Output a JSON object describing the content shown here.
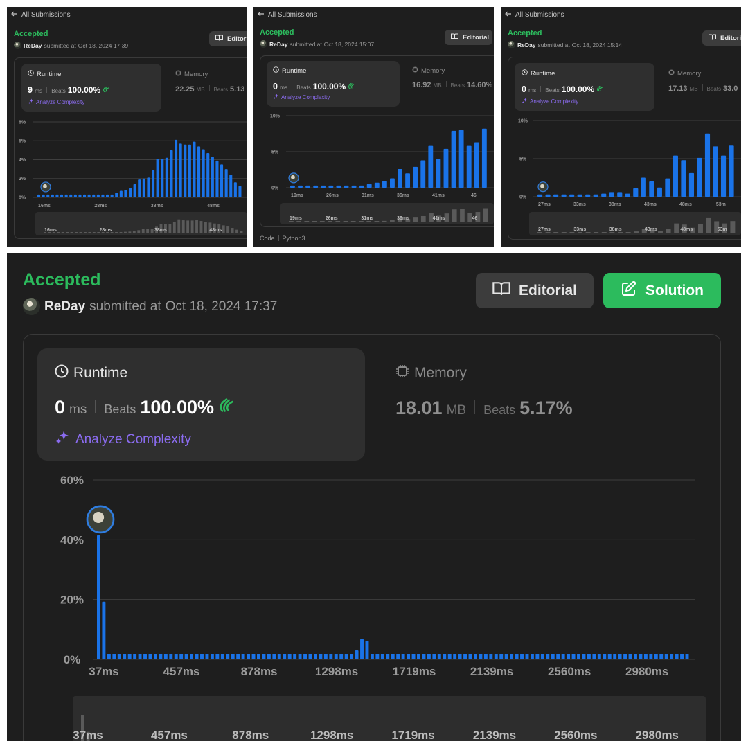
{
  "shared": {
    "back_label": "All Submissions",
    "status": "Accepted",
    "user": "ReDay",
    "submitted_prefix": "submitted at",
    "editorial_label": "Editorial",
    "solution_label": "Solution",
    "runtime_label": "Runtime",
    "memory_label": "Memory",
    "ms_unit": "ms",
    "mb_unit": "MB",
    "beats_label": "Beats",
    "analyze_label": "Analyze Complexity",
    "accent_color": "#2cbb5d",
    "bar_color": "#1a73e8"
  },
  "panels": [
    {
      "editorial_label": "Editori",
      "submitted_at": "Oct 18, 2024 17:39",
      "runtime_value": "9",
      "runtime_beats": "100.00%",
      "memory_value": "22.25",
      "memory_beats": "5.13",
      "chart_data": {
        "type": "bar",
        "y_ticks": [
          "8%",
          "6%",
          "4%",
          "2%",
          "0%"
        ],
        "ylim": [
          0,
          8
        ],
        "x_tick_labels": [
          "16ms",
          "28ms",
          "38ms",
          "48ms"
        ],
        "values": [
          0.3,
          0.3,
          0.3,
          0.3,
          0.3,
          0.3,
          0.3,
          0.3,
          0.3,
          0.3,
          0.3,
          0.3,
          0.3,
          0.3,
          0.3,
          0.3,
          0.3,
          0.5,
          0.7,
          0.8,
          1.0,
          1.4,
          1.9,
          2.0,
          2.1,
          2.9,
          4.1,
          4.1,
          4.2,
          5.0,
          6.1,
          5.7,
          5.6,
          5.6,
          5.9,
          5.4,
          5.1,
          4.7,
          4.3,
          3.9,
          3.5,
          3.0,
          2.4,
          1.6,
          1.2
        ]
      }
    },
    {
      "editorial_label": "Editorial",
      "submitted_at": "Oct 18, 2024 15:07",
      "runtime_value": "0",
      "runtime_beats": "100.00%",
      "memory_value": "16.92",
      "memory_beats": "14.60%",
      "footer_code": "Code",
      "footer_lang": "Python3",
      "chart_data": {
        "type": "bar",
        "y_ticks": [
          "10%",
          "5%",
          "0%"
        ],
        "ylim": [
          0,
          10
        ],
        "x_tick_labels": [
          "19ms",
          "26ms",
          "31ms",
          "36ms",
          "41ms",
          "46"
        ],
        "values": [
          0.3,
          0.3,
          0.3,
          0.3,
          0.3,
          0.3,
          0.3,
          0.3,
          0.3,
          0.3,
          0.5,
          0.7,
          0.9,
          1.3,
          2.6,
          2.0,
          2.9,
          3.8,
          5.8,
          4.0,
          5.4,
          7.9,
          8.0,
          5.8,
          6.3,
          8.2
        ]
      }
    },
    {
      "editorial_label": "Editori",
      "submitted_at": "Oct 18, 2024 15:14",
      "runtime_value": "0",
      "runtime_beats": "100.00%",
      "memory_value": "17.13",
      "memory_beats": "33.0",
      "chart_data": {
        "type": "bar",
        "y_ticks": [
          "10%",
          "5%",
          "0%"
        ],
        "ylim": [
          0,
          10
        ],
        "x_tick_labels": [
          "27ms",
          "33ms",
          "38ms",
          "43ms",
          "48ms",
          "53m"
        ],
        "values": [
          0.3,
          0.3,
          0.3,
          0.3,
          0.3,
          0.3,
          0.3,
          0.3,
          0.4,
          0.6,
          0.6,
          0.4,
          1.1,
          2.5,
          2.0,
          1.2,
          2.4,
          5.4,
          4.8,
          3.1,
          5.1,
          8.3,
          6.6,
          5.4,
          6.7
        ]
      }
    },
    {
      "submitted_at": "Oct 18, 2024 17:37",
      "runtime_value": "0",
      "runtime_beats": "100.00%",
      "memory_value": "18.01",
      "memory_beats": "5.17%",
      "chart_data": {
        "type": "bar",
        "y_ticks": [
          "60%",
          "40%",
          "20%",
          "0%"
        ],
        "ylim": [
          0,
          60
        ],
        "x_tick_labels": [
          "37ms",
          "457ms",
          "878ms",
          "1298ms",
          "1719ms",
          "2139ms",
          "2560ms",
          "2980ms"
        ],
        "values": [
          41.5,
          19.3,
          1.8,
          1.8,
          1.8,
          1.8,
          1.8,
          1.8,
          1.8,
          1.8,
          1.8,
          1.8,
          1.8,
          1.8,
          1.8,
          1.8,
          1.8,
          1.8,
          1.8,
          1.8,
          1.8,
          1.8,
          1.8,
          1.8,
          1.8,
          1.8,
          1.8,
          1.8,
          1.8,
          1.8,
          1.8,
          1.8,
          1.8,
          1.8,
          1.8,
          1.8,
          1.8,
          1.8,
          1.8,
          1.8,
          1.8,
          1.8,
          1.8,
          1.8,
          1.8,
          1.8,
          1.8,
          1.8,
          1.8,
          1.8,
          3.0,
          6.8,
          6.2,
          1.8,
          1.8,
          1.8,
          1.8,
          1.8,
          1.8,
          1.8,
          1.8,
          1.8,
          1.8,
          1.8,
          1.8,
          1.8,
          1.8,
          1.8,
          1.8,
          1.8,
          1.8,
          1.8,
          1.8,
          1.8,
          1.8,
          1.8,
          1.8,
          1.8,
          1.8,
          1.8,
          1.8,
          1.8,
          1.8,
          1.8,
          1.8,
          1.8,
          1.8,
          1.8,
          1.8,
          1.8,
          1.8,
          1.8,
          1.8,
          1.8,
          1.8,
          1.8,
          1.8,
          1.8,
          1.8,
          1.8,
          1.8,
          1.8,
          1.8,
          1.8,
          1.8,
          1.8,
          1.8,
          1.8,
          1.8,
          1.8,
          1.8,
          1.8,
          1.8,
          1.8,
          1.8
        ]
      }
    }
  ]
}
